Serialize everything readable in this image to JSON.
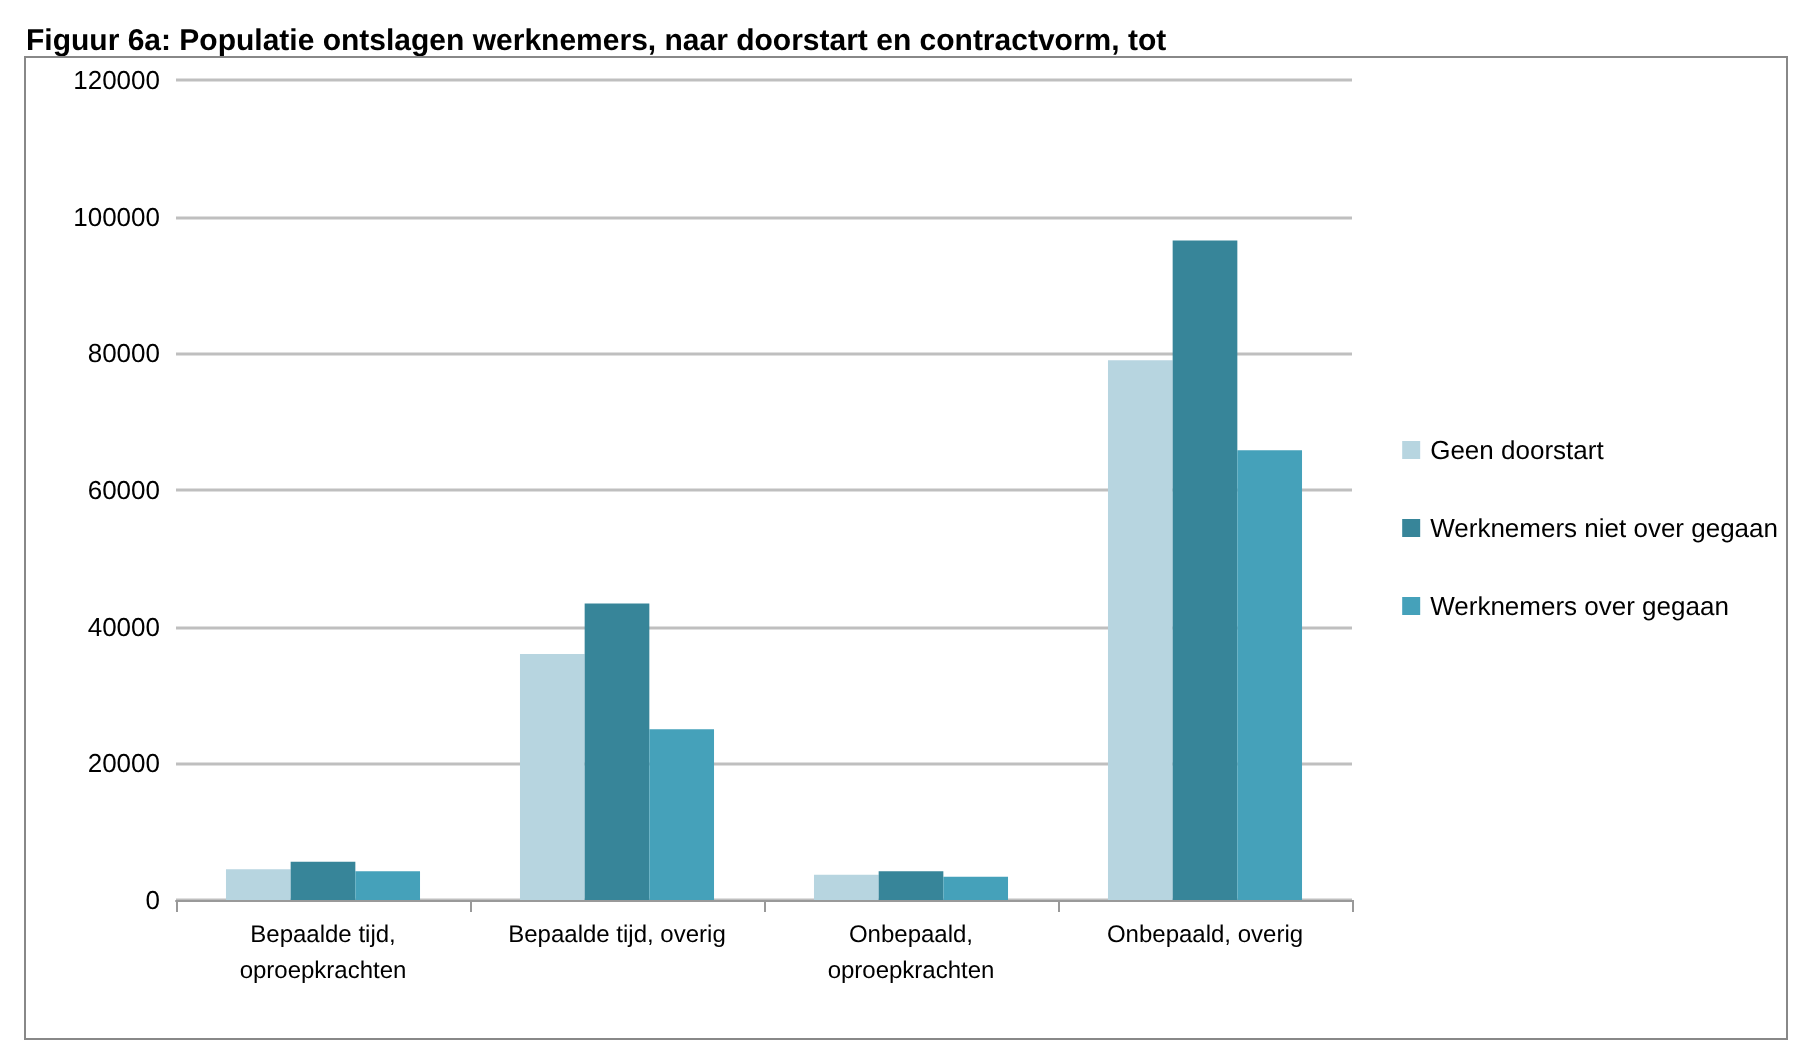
{
  "chart_data": {
    "type": "bar",
    "title": "Figuur 6a: Populatie ontslagen werknemers, naar doorstart en contractvorm, tot",
    "categories": [
      "Bepaalde tijd,\noproepkrachten",
      "Bepaalde tijd, overig",
      "Onbepaald,\noproepkrachten",
      "Onbepaald, overig"
    ],
    "series": [
      {
        "name": "Geen doorstart",
        "color": "#b7d5e0",
        "values": [
          4500,
          36000,
          3700,
          79000
        ]
      },
      {
        "name": "Werknemers niet over gegaan",
        "color": "#378599",
        "values": [
          5600,
          43400,
          4200,
          96500
        ]
      },
      {
        "name": "Werknemers over gegaan",
        "color": "#45a1ba",
        "values": [
          4200,
          25000,
          3400,
          65800
        ]
      }
    ],
    "ylim": [
      0,
      120000
    ],
    "yticks": [
      0,
      20000,
      40000,
      60000,
      80000,
      100000,
      120000
    ],
    "grid": "y",
    "legend": "right"
  }
}
